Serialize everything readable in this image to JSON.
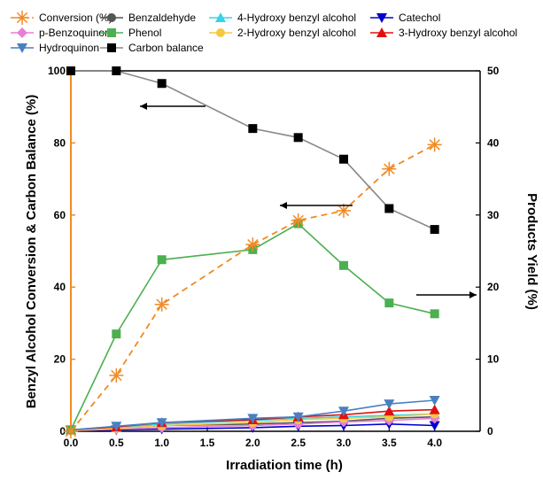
{
  "chart_data": {
    "type": "line",
    "xlabel": "Irradiation time (h)",
    "ylabel_left": "Benzyl Alcohol Conversion & Carbon Balance (%)",
    "ylabel_right": "Products Yield (%)",
    "xlim": [
      0,
      4.5
    ],
    "ylim_left": [
      0,
      100
    ],
    "ylim_right": [
      0,
      50
    ],
    "x_ticks": [
      "0.0",
      "0.5",
      "1.0",
      "1.5",
      "2.0",
      "2.5",
      "3.0",
      "3.5",
      "4.0"
    ],
    "y_left_ticks": [
      "0",
      "20",
      "40",
      "60",
      "80",
      "100"
    ],
    "y_right_ticks": [
      "0",
      "10",
      "20",
      "30",
      "40",
      "50"
    ],
    "legend_placement": "top",
    "x": [
      0,
      0.5,
      1.0,
      2.0,
      2.5,
      3.0,
      3.5,
      4.0
    ],
    "series": [
      {
        "name": "Conversion (%)",
        "axis": "left",
        "color": "#F08A24",
        "marker": "asterisk",
        "dashed": true,
        "values": [
          0,
          15.5,
          35.2,
          51.8,
          58.5,
          61.2,
          72.8,
          79.5
        ]
      },
      {
        "name": "Benzaldehyde",
        "axis": "right",
        "color": "#555555",
        "marker": "circle",
        "dashed": false,
        "values": [
          0.2,
          0.4,
          0.8,
          1.0,
          1.2,
          1.4,
          1.8,
          2.0
        ]
      },
      {
        "name": "4-Hydroxy benzyl alcohol",
        "axis": "right",
        "color": "#33D6E8",
        "marker": "triangle-up",
        "dashed": false,
        "values": [
          0.2,
          0.5,
          1.0,
          1.5,
          1.8,
          2.0,
          2.2,
          2.4
        ]
      },
      {
        "name": "Catechol",
        "axis": "right",
        "color": "#0000CC",
        "marker": "triangle-down",
        "dashed": false,
        "values": [
          0.1,
          0.2,
          0.3,
          0.5,
          0.7,
          0.8,
          1.0,
          0.8
        ]
      },
      {
        "name": "p-Benzoquinon",
        "axis": "right",
        "color": "#E87FD6",
        "marker": "diamond",
        "dashed": false,
        "values": [
          0.1,
          0.3,
          0.5,
          0.8,
          1.0,
          1.3,
          1.5,
          1.8
        ]
      },
      {
        "name": "Phenol",
        "axis": "right",
        "color": "#4CAF50",
        "marker": "square",
        "dashed": false,
        "values": [
          0.2,
          13.5,
          23.8,
          25.2,
          28.8,
          23.0,
          17.8,
          16.3
        ]
      },
      {
        "name": "2-Hydroxy benzyl alcohol",
        "axis": "right",
        "color": "#F5C842",
        "marker": "circle",
        "dashed": false,
        "values": [
          0.1,
          0.4,
          0.8,
          1.2,
          1.6,
          1.8,
          2.0,
          2.4
        ]
      },
      {
        "name": "3-Hydroxy benzyl alcohol",
        "axis": "right",
        "color": "#E01010",
        "marker": "triangle-up",
        "dashed": false,
        "values": [
          0.2,
          0.6,
          1.2,
          1.6,
          2.0,
          2.3,
          2.8,
          3.0
        ]
      },
      {
        "name": "Hydroquinon",
        "axis": "right",
        "color": "#4A7FC0",
        "marker": "triangle-down",
        "dashed": false,
        "values": [
          0.2,
          0.7,
          1.2,
          1.8,
          2.0,
          2.8,
          3.8,
          4.3
        ]
      },
      {
        "name": "Carbon balance",
        "axis": "left",
        "color": "#000000",
        "line_color": "#888888",
        "marker": "square",
        "dashed": false,
        "values": [
          100,
          100,
          96.5,
          84,
          81.5,
          75.5,
          61.8,
          56
        ]
      }
    ]
  }
}
